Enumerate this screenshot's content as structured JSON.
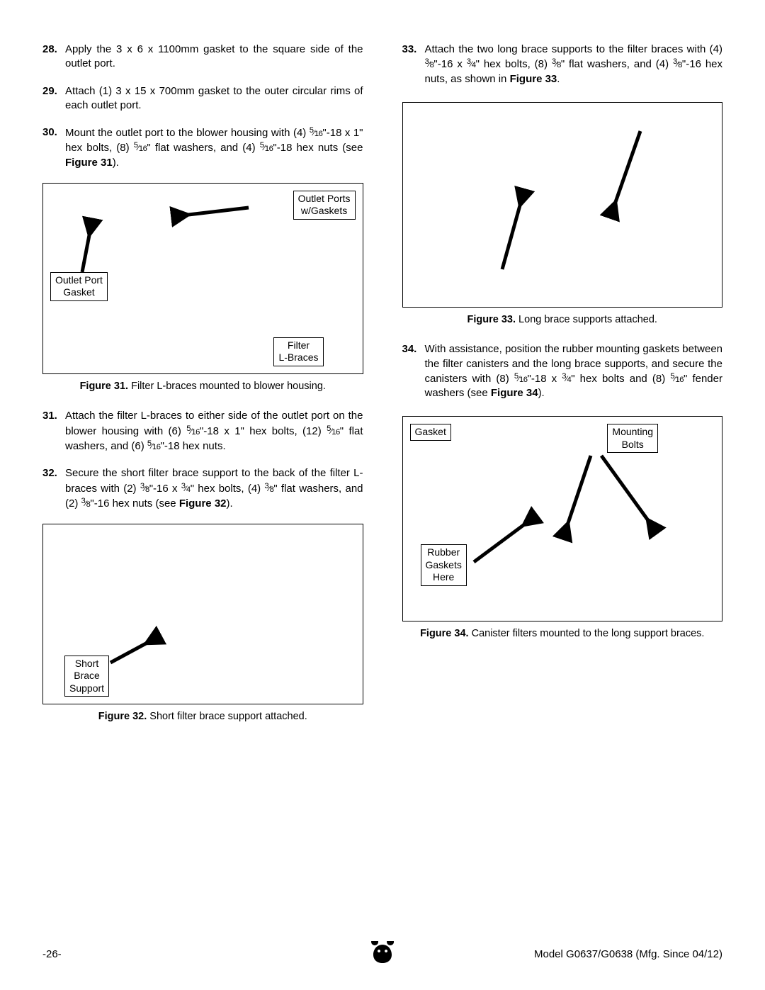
{
  "steps": {
    "s28": {
      "num": "28.",
      "text": "Apply the 3 x 6 x 1100mm gasket to the square side of the outlet port."
    },
    "s29": {
      "num": "29.",
      "text": "Attach (1) 3 x 15 x 700mm gasket to the outer circular rims of each outlet port."
    },
    "s30": {
      "num": "30.",
      "pre": "Mount the outlet port to the blower housing with (4) ",
      "f1n": "5",
      "f1d": "16",
      "mid1": "\"-18 x 1\" hex bolts, (8) ",
      "f2n": "5",
      "f2d": "16",
      "mid2": "\" flat washers, and (4) ",
      "f3n": "5",
      "f3d": "16",
      "post": "\"-18 hex nuts (see ",
      "ref": "Figure 31",
      "tail": ")."
    },
    "s31": {
      "num": "31.",
      "pre": "Attach the filter L-braces to either side of the outlet port on the blower housing with (6) ",
      "f1n": "5",
      "f1d": "16",
      "mid1": "\"-18 x 1\" hex bolts, (12) ",
      "f2n": "5",
      "f2d": "16",
      "mid2": "\" flat washers, and (6) ",
      "f3n": "5",
      "f3d": "16",
      "post": "\"-18 hex nuts."
    },
    "s32": {
      "num": "32.",
      "pre": "Secure the short filter brace support to the back of the filter L-braces with (2) ",
      "f1n": "3",
      "f1d": "8",
      "mid1": "\"-16 x ",
      "f2n": "3",
      "f2d": "4",
      "mid2": "\" hex bolts, (4) ",
      "f3n": "3",
      "f3d": "8",
      "mid3": "\" flat washers, and (2) ",
      "f4n": "3",
      "f4d": "8",
      "post": "\"-16 hex nuts (see ",
      "ref": "Figure 32",
      "tail": ")."
    },
    "s33": {
      "num": "33.",
      "pre": "Attach the two long brace supports to the filter braces with (4) ",
      "f1n": "3",
      "f1d": "8",
      "mid1": "\"-16 x ",
      "f2n": "3",
      "f2d": "4",
      "mid2": "\" hex bolts, (8) ",
      "f3n": "3",
      "f3d": "8",
      "mid3": "\" flat washers, and (4) ",
      "f4n": "3",
      "f4d": "8",
      "post": "\"-16 hex nuts, as shown in ",
      "ref": "Figure 33",
      "tail": "."
    },
    "s34": {
      "num": "34.",
      "pre": "With assistance, position the rubber mounting gaskets between the filter canisters and the long brace supports, and secure the canisters with (8) ",
      "f1n": "5",
      "f1d": "16",
      "mid1": "\"-18 x ",
      "f2n": "3",
      "f2d": "4",
      "mid2": "\" hex bolts and (8) ",
      "f3n": "5",
      "f3d": "16",
      "post": "\" fender washers (see ",
      "ref": "Figure 34",
      "tail": ")."
    }
  },
  "fig31": {
    "label1": "Outlet Ports\nw/Gaskets",
    "label2": "Outlet Port\nGasket",
    "label3": "Filter\nL-Braces",
    "caption_b": "Figure 31.",
    "caption_t": " Filter L-braces mounted to blower housing."
  },
  "fig32": {
    "label1": "Short\nBrace\nSupport",
    "caption_b": "Figure 32.",
    "caption_t": " Short filter brace support attached."
  },
  "fig33": {
    "caption_b": "Figure 33.",
    "caption_t": " Long brace supports attached."
  },
  "fig34": {
    "label1": "Gasket",
    "label2": "Mounting\nBolts",
    "label3": "Rubber\nGaskets\nHere",
    "caption_b": "Figure 34.",
    "caption_t": " Canister filters mounted to the long support braces."
  },
  "footer": {
    "page": "-26-",
    "model": "Model G0637/G0638 (Mfg. Since 04/12)"
  },
  "style": {
    "box_border": "#000",
    "arrow_color": "#000",
    "arrow_width": 5
  }
}
